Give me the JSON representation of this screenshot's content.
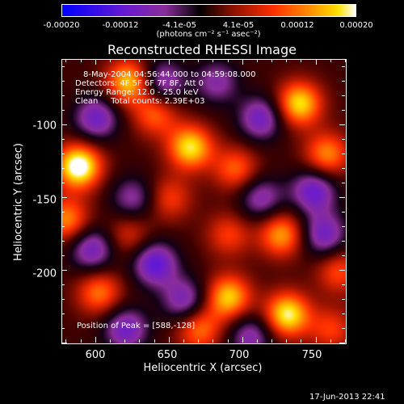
{
  "chart_data": {
    "type": "heatmap",
    "title": "Reconstructed RHESSI Image",
    "xlabel": "Heliocentric X (arcsec)",
    "ylabel": "Heliocentric Y (arcsec)",
    "xlim": [
      577,
      770
    ],
    "ylim": [
      -250,
      -55
    ],
    "x_ticks": [
      "600",
      "650",
      "700",
      "750"
    ],
    "y_ticks": [
      "-100",
      "-150",
      "-200"
    ],
    "colorbar": {
      "ticks": [
        "-0.00020",
        "-0.00012",
        "-4.1e-05",
        "4.1e-05",
        "0.00012",
        "0.00020"
      ],
      "unit_label": "(photons cm⁻² s⁻¹ asec⁻²)",
      "range": [
        -0.0002,
        0.0002
      ]
    },
    "annotations": {
      "time_range": "8-May-2004 04:56:44.000 to 04:59:08.000",
      "detectors": "Detectors: 4F 5F 6F 7F 8F, Att 0",
      "energy": "Energy Range: 12.0 - 25.0 keV",
      "clean": "Clean     Total counts: 2.39E+03",
      "peak": "Position of Peak = [588,-128]"
    },
    "sources": [
      {
        "x": 588,
        "y": -128,
        "value": 0.0002
      },
      {
        "x": 622,
        "y": -70,
        "value": 0.00015
      },
      {
        "x": 664,
        "y": -115,
        "value": 0.00016
      },
      {
        "x": 695,
        "y": -130,
        "value": 0.0001
      },
      {
        "x": 738,
        "y": -85,
        "value": 0.00016
      },
      {
        "x": 757,
        "y": -120,
        "value": 0.00012
      },
      {
        "x": 726,
        "y": -175,
        "value": 0.00013
      },
      {
        "x": 690,
        "y": -175,
        "value": 8e-05
      },
      {
        "x": 690,
        "y": -218,
        "value": 0.00015
      },
      {
        "x": 730,
        "y": -230,
        "value": 0.00017
      },
      {
        "x": 670,
        "y": -240,
        "value": 0.00011
      },
      {
        "x": 602,
        "y": -215,
        "value": 0.00011
      },
      {
        "x": 580,
        "y": -165,
        "value": 0.00012
      },
      {
        "x": 622,
        "y": -175,
        "value": 7e-05
      },
      {
        "x": 650,
        "y": -150,
        "value": 8e-05
      },
      {
        "x": 765,
        "y": -200,
        "value": 9e-05
      },
      {
        "x": 640,
        "y": -92,
        "value": 0.0001
      },
      {
        "x": 760,
        "y": -240,
        "value": 8e-05
      }
    ],
    "negatives": [
      {
        "x": 600,
        "y": -95,
        "value": -0.00012
      },
      {
        "x": 645,
        "y": -70,
        "value": -0.00011
      },
      {
        "x": 712,
        "y": -95,
        "value": -0.00012
      },
      {
        "x": 748,
        "y": -145,
        "value": -0.00013
      },
      {
        "x": 640,
        "y": -195,
        "value": -0.00014
      },
      {
        "x": 597,
        "y": -185,
        "value": -0.00012
      },
      {
        "x": 660,
        "y": -220,
        "value": -0.00011
      },
      {
        "x": 755,
        "y": -175,
        "value": -0.00012
      },
      {
        "x": 712,
        "y": -150,
        "value": -0.0001
      },
      {
        "x": 620,
        "y": -240,
        "value": -0.00012
      },
      {
        "x": 705,
        "y": -245,
        "value": -0.0001
      },
      {
        "x": 625,
        "y": -150,
        "value": -9e-05
      },
      {
        "x": 682,
        "y": -70,
        "value": -9e-05
      }
    ]
  },
  "footer": {
    "timestamp": "17-Jun-2013 22:41"
  }
}
